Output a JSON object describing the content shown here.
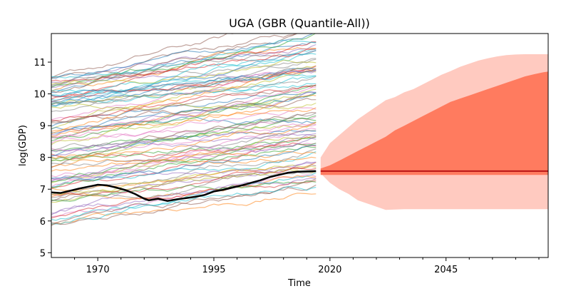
{
  "chart_data": {
    "type": "line",
    "title": "UGA (GBR (Quantile-All))",
    "xlabel": "Time",
    "ylabel": "log(GDP)",
    "xlim": [
      1960,
      2067
    ],
    "ylim": [
      4.85,
      11.9
    ],
    "xticks": [
      1970,
      1995,
      2020,
      2045
    ],
    "yticks": [
      5,
      6,
      7,
      8,
      9,
      10,
      11
    ],
    "grid": false,
    "highlight_series": {
      "name": "UGA",
      "color": "#000000",
      "x": [
        1960,
        1962,
        1964,
        1966,
        1968,
        1970,
        1972,
        1974,
        1976,
        1978,
        1980,
        1981,
        1983,
        1985,
        1987,
        1989,
        1991,
        1993,
        1995,
        1997,
        1999,
        2001,
        2003,
        2005,
        2007,
        2009,
        2011,
        2013,
        2015,
        2017
      ],
      "y": [
        6.9,
        6.88,
        6.95,
        7.02,
        7.08,
        7.14,
        7.12,
        7.05,
        6.97,
        6.85,
        6.7,
        6.65,
        6.7,
        6.63,
        6.68,
        6.72,
        6.76,
        6.82,
        6.93,
        6.98,
        7.05,
        7.12,
        7.2,
        7.28,
        7.38,
        7.45,
        7.52,
        7.55,
        7.56,
        7.57
      ]
    },
    "background_series_count": 92,
    "background_series_colors": [
      "#1f77b4",
      "#ff7f0e",
      "#2ca02c",
      "#d62728",
      "#9467bd",
      "#8c564b",
      "#e377c2",
      "#7f7f7f",
      "#bcbd22",
      "#17becf"
    ],
    "forecast": {
      "start": 2018,
      "median": 7.57,
      "band_colors": {
        "outer": "#ffcac0",
        "inner": "#ff7b5f",
        "median": "#b81414"
      },
      "x": [
        2018,
        2020,
        2022,
        2024,
        2026,
        2028,
        2030,
        2032,
        2034,
        2036,
        2038,
        2040,
        2042,
        2044,
        2046,
        2048,
        2050,
        2052,
        2054,
        2056,
        2058,
        2060,
        2062,
        2064,
        2066,
        2067
      ],
      "outer_upper": [
        8.0,
        8.45,
        8.7,
        8.95,
        9.2,
        9.4,
        9.6,
        9.8,
        9.9,
        10.05,
        10.15,
        10.3,
        10.45,
        10.6,
        10.72,
        10.85,
        10.95,
        11.05,
        11.12,
        11.18,
        11.22,
        11.24,
        11.25,
        11.25,
        11.25,
        11.25
      ],
      "inner_upper": [
        7.65,
        7.75,
        7.9,
        8.05,
        8.2,
        8.35,
        8.5,
        8.65,
        8.85,
        9.0,
        9.15,
        9.3,
        9.45,
        9.6,
        9.75,
        9.85,
        9.95,
        10.05,
        10.15,
        10.25,
        10.35,
        10.45,
        10.55,
        10.62,
        10.68,
        10.7
      ],
      "inner_lower": [
        7.45,
        7.45,
        7.45,
        7.45,
        7.45,
        7.45,
        7.45,
        7.45,
        7.45,
        7.45,
        7.45,
        7.45,
        7.45,
        7.45,
        7.45,
        7.45,
        7.45,
        7.45,
        7.45,
        7.45,
        7.45,
        7.45,
        7.45,
        7.45,
        7.45,
        7.45
      ],
      "outer_lower": [
        7.5,
        7.2,
        7.0,
        6.85,
        6.65,
        6.55,
        6.45,
        6.35,
        6.36,
        6.37,
        6.37,
        6.37,
        6.37,
        6.37,
        6.37,
        6.37,
        6.37,
        6.37,
        6.37,
        6.37,
        6.37,
        6.37,
        6.37,
        6.37,
        6.37,
        6.37
      ]
    }
  }
}
